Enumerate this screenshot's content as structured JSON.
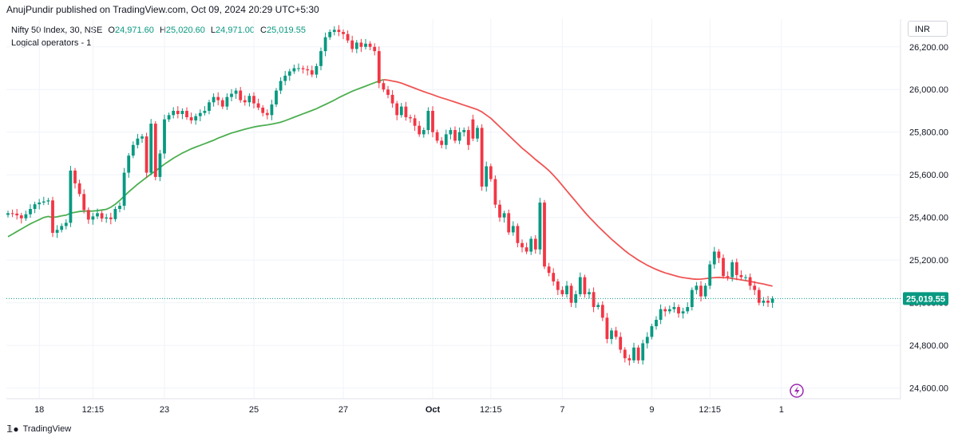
{
  "header": {
    "published": "AnujPundir published on TradingView.com, Oct 09, 2024 20:29 UTC+5:30"
  },
  "legend": {
    "symbol": "Nifty 50 Index, 30, NSE",
    "open_label": "O",
    "open": "24,971.60",
    "high_label": "H",
    "high": "25,020.60",
    "low_label": "L",
    "low": "24,971.00",
    "close_label": "C",
    "close": "25,019.55",
    "indicator": "Logical operators - 1"
  },
  "currency_button": "INR",
  "footer": {
    "brand": "TradingView"
  },
  "colors": {
    "up": "#089981",
    "down": "#f23645",
    "ma_up": "#4caf50",
    "ma_down": "#f05454",
    "grid": "#f0f3fa",
    "price_tag": "#089981"
  },
  "chart_data": {
    "type": "candlestick",
    "ylim": [
      24550,
      26330
    ],
    "y_ticks": [
      24600,
      24800,
      25000,
      25200,
      25400,
      25600,
      25800,
      26000,
      26200
    ],
    "y_tick_labels": [
      "24,600.00",
      "24,800.00",
      "25,000.00",
      "25,200.00",
      "25,400.00",
      "25,600.00",
      "25,800.00",
      "26,000.00",
      "26,200.00"
    ],
    "x_tick_labels": [
      "18",
      "12:15",
      "23",
      "25",
      "27",
      "Oct",
      "12:15",
      "7",
      "9",
      "12:15",
      "1"
    ],
    "x_tick_bar_index": [
      7,
      19,
      35,
      55,
      75,
      95,
      108,
      124,
      144,
      157,
      173
    ],
    "last_price": 25019.55,
    "last_price_label": "25,019.55",
    "gap_after_bar": 103,
    "closes": [
      25420,
      25418,
      25410,
      25396,
      25415,
      25440,
      25462,
      25470,
      25475,
      25480,
      25328,
      25342,
      25360,
      25375,
      25620,
      25560,
      25510,
      25435,
      25390,
      25405,
      25420,
      25395,
      25400,
      25392,
      25440,
      25455,
      25610,
      25690,
      25740,
      25770,
      25780,
      25610,
      25840,
      25590,
      25700,
      25860,
      25880,
      25900,
      25885,
      25900,
      25870,
      25855,
      25875,
      25890,
      25900,
      25940,
      25965,
      25950,
      25920,
      25965,
      25980,
      25995,
      25950,
      25940,
      25970,
      25935,
      25915,
      25890,
      25880,
      25930,
      25995,
      26040,
      26065,
      26085,
      26100,
      26100,
      26095,
      26090,
      26070,
      26110,
      26180,
      26245,
      26270,
      26280,
      26270,
      26260,
      26230,
      26190,
      26220,
      26200,
      26215,
      26200,
      26180,
      26030,
      26000,
      25975,
      25935,
      25880,
      25920,
      25870,
      25865,
      25830,
      25790,
      25810,
      25900,
      25800,
      25760,
      25740,
      25790,
      25810,
      25760,
      25800,
      25810,
      25740,
      25770,
      25820,
      25545,
      25640,
      25580,
      25460,
      25400,
      25420,
      25330,
      25360,
      25280,
      25260,
      25240,
      25300,
      25250,
      25470,
      25170,
      25140,
      25100,
      25060,
      25040,
      25080,
      25000,
      25040,
      25120,
      25040,
      25050,
      24980,
      24990,
      24930,
      24830,
      24870,
      24840,
      24780,
      24740,
      24730,
      24790,
      24730,
      24810,
      24840,
      24890,
      24920,
      24970,
      24960,
      24970,
      24980,
      24950,
      24960,
      24980,
      25060,
      25080,
      25030,
      25080,
      25180,
      25240,
      25210,
      25125,
      25120,
      25190,
      25130,
      25120,
      25120,
      25080,
      25060,
      25000,
      25010,
      25000,
      25019.55
    ],
    "ma_values": [
      25310,
      25322,
      25334,
      25346,
      25358,
      25370,
      25380,
      25390,
      25400,
      25405,
      25400,
      25403,
      25408,
      25411,
      25420,
      25424,
      25428,
      25430,
      25430,
      25430,
      25432,
      25435,
      25438,
      25448,
      25462,
      25480,
      25500,
      25520,
      25538,
      25556,
      25572,
      25588,
      25604,
      25618,
      25634,
      25650,
      25664,
      25678,
      25690,
      25702,
      25712,
      25722,
      25730,
      25738,
      25746,
      25754,
      25762,
      25772,
      25780,
      25788,
      25796,
      25802,
      25808,
      25814,
      25819,
      25824,
      25828,
      25831,
      25834,
      25838,
      25842,
      25847,
      25854,
      25862,
      25870,
      25878,
      25886,
      25894,
      25902,
      25910,
      25920,
      25930,
      25940,
      25950,
      25962,
      25972,
      25982,
      25992,
      26000,
      26008,
      26016,
      26024,
      26032,
      26040,
      26046,
      26044,
      26040,
      26036,
      26030,
      26022,
      26014,
      26006,
      25998,
      25990,
      25983,
      25976,
      25968,
      25961,
      25955,
      25948,
      25941,
      25934,
      25927,
      25920,
      25913,
      25906,
      25895,
      25880,
      25865,
      25845,
      25825,
      25805,
      25785,
      25765,
      25745,
      25725,
      25708,
      25690,
      25672,
      25655,
      25638,
      25620,
      25598,
      25575,
      25550,
      25525,
      25500,
      25475,
      25450,
      25425,
      25402,
      25380,
      25358,
      25338,
      25318,
      25298,
      25280,
      25262,
      25244,
      25228,
      25214,
      25200,
      25188,
      25176,
      25166,
      25156,
      25148,
      25140,
      25134,
      25128,
      25122,
      25118,
      25115,
      25112,
      25110,
      25111,
      25113,
      25116,
      25118,
      25119,
      25118,
      25117,
      25114,
      25111,
      25107,
      25104,
      25100,
      25096,
      25092,
      25088,
      25083,
      25078
    ]
  }
}
